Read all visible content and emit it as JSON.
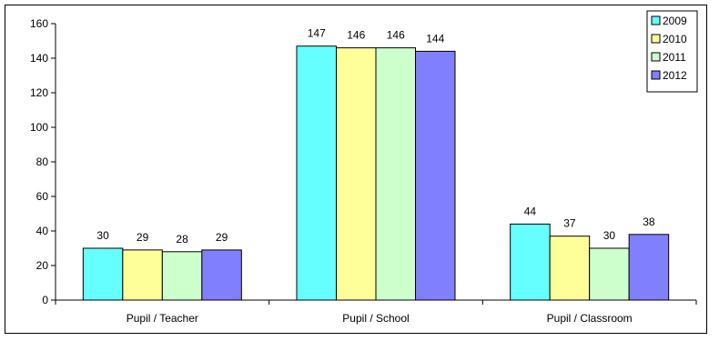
{
  "chart_data": {
    "type": "bar",
    "categories": [
      "Pupil / Teacher",
      "Pupil / School",
      "Pupil / Classroom"
    ],
    "series": [
      {
        "name": "2009",
        "values": [
          30,
          147,
          44
        ],
        "color": "#66FFFF"
      },
      {
        "name": "2010",
        "values": [
          29,
          146,
          37
        ],
        "color": "#FFFF99"
      },
      {
        "name": "2011",
        "values": [
          28,
          146,
          30
        ],
        "color": "#CCFFCC"
      },
      {
        "name": "2012",
        "values": [
          29,
          144,
          38
        ],
        "color": "#8080FF"
      }
    ],
    "yticks": [
      "0",
      "20",
      "40",
      "60",
      "80",
      "100",
      "120",
      "140",
      "160"
    ],
    "ylim": [
      0,
      160
    ],
    "grid": false,
    "legend_position": "top-right",
    "title": "",
    "xlabel": "",
    "ylabel": ""
  }
}
